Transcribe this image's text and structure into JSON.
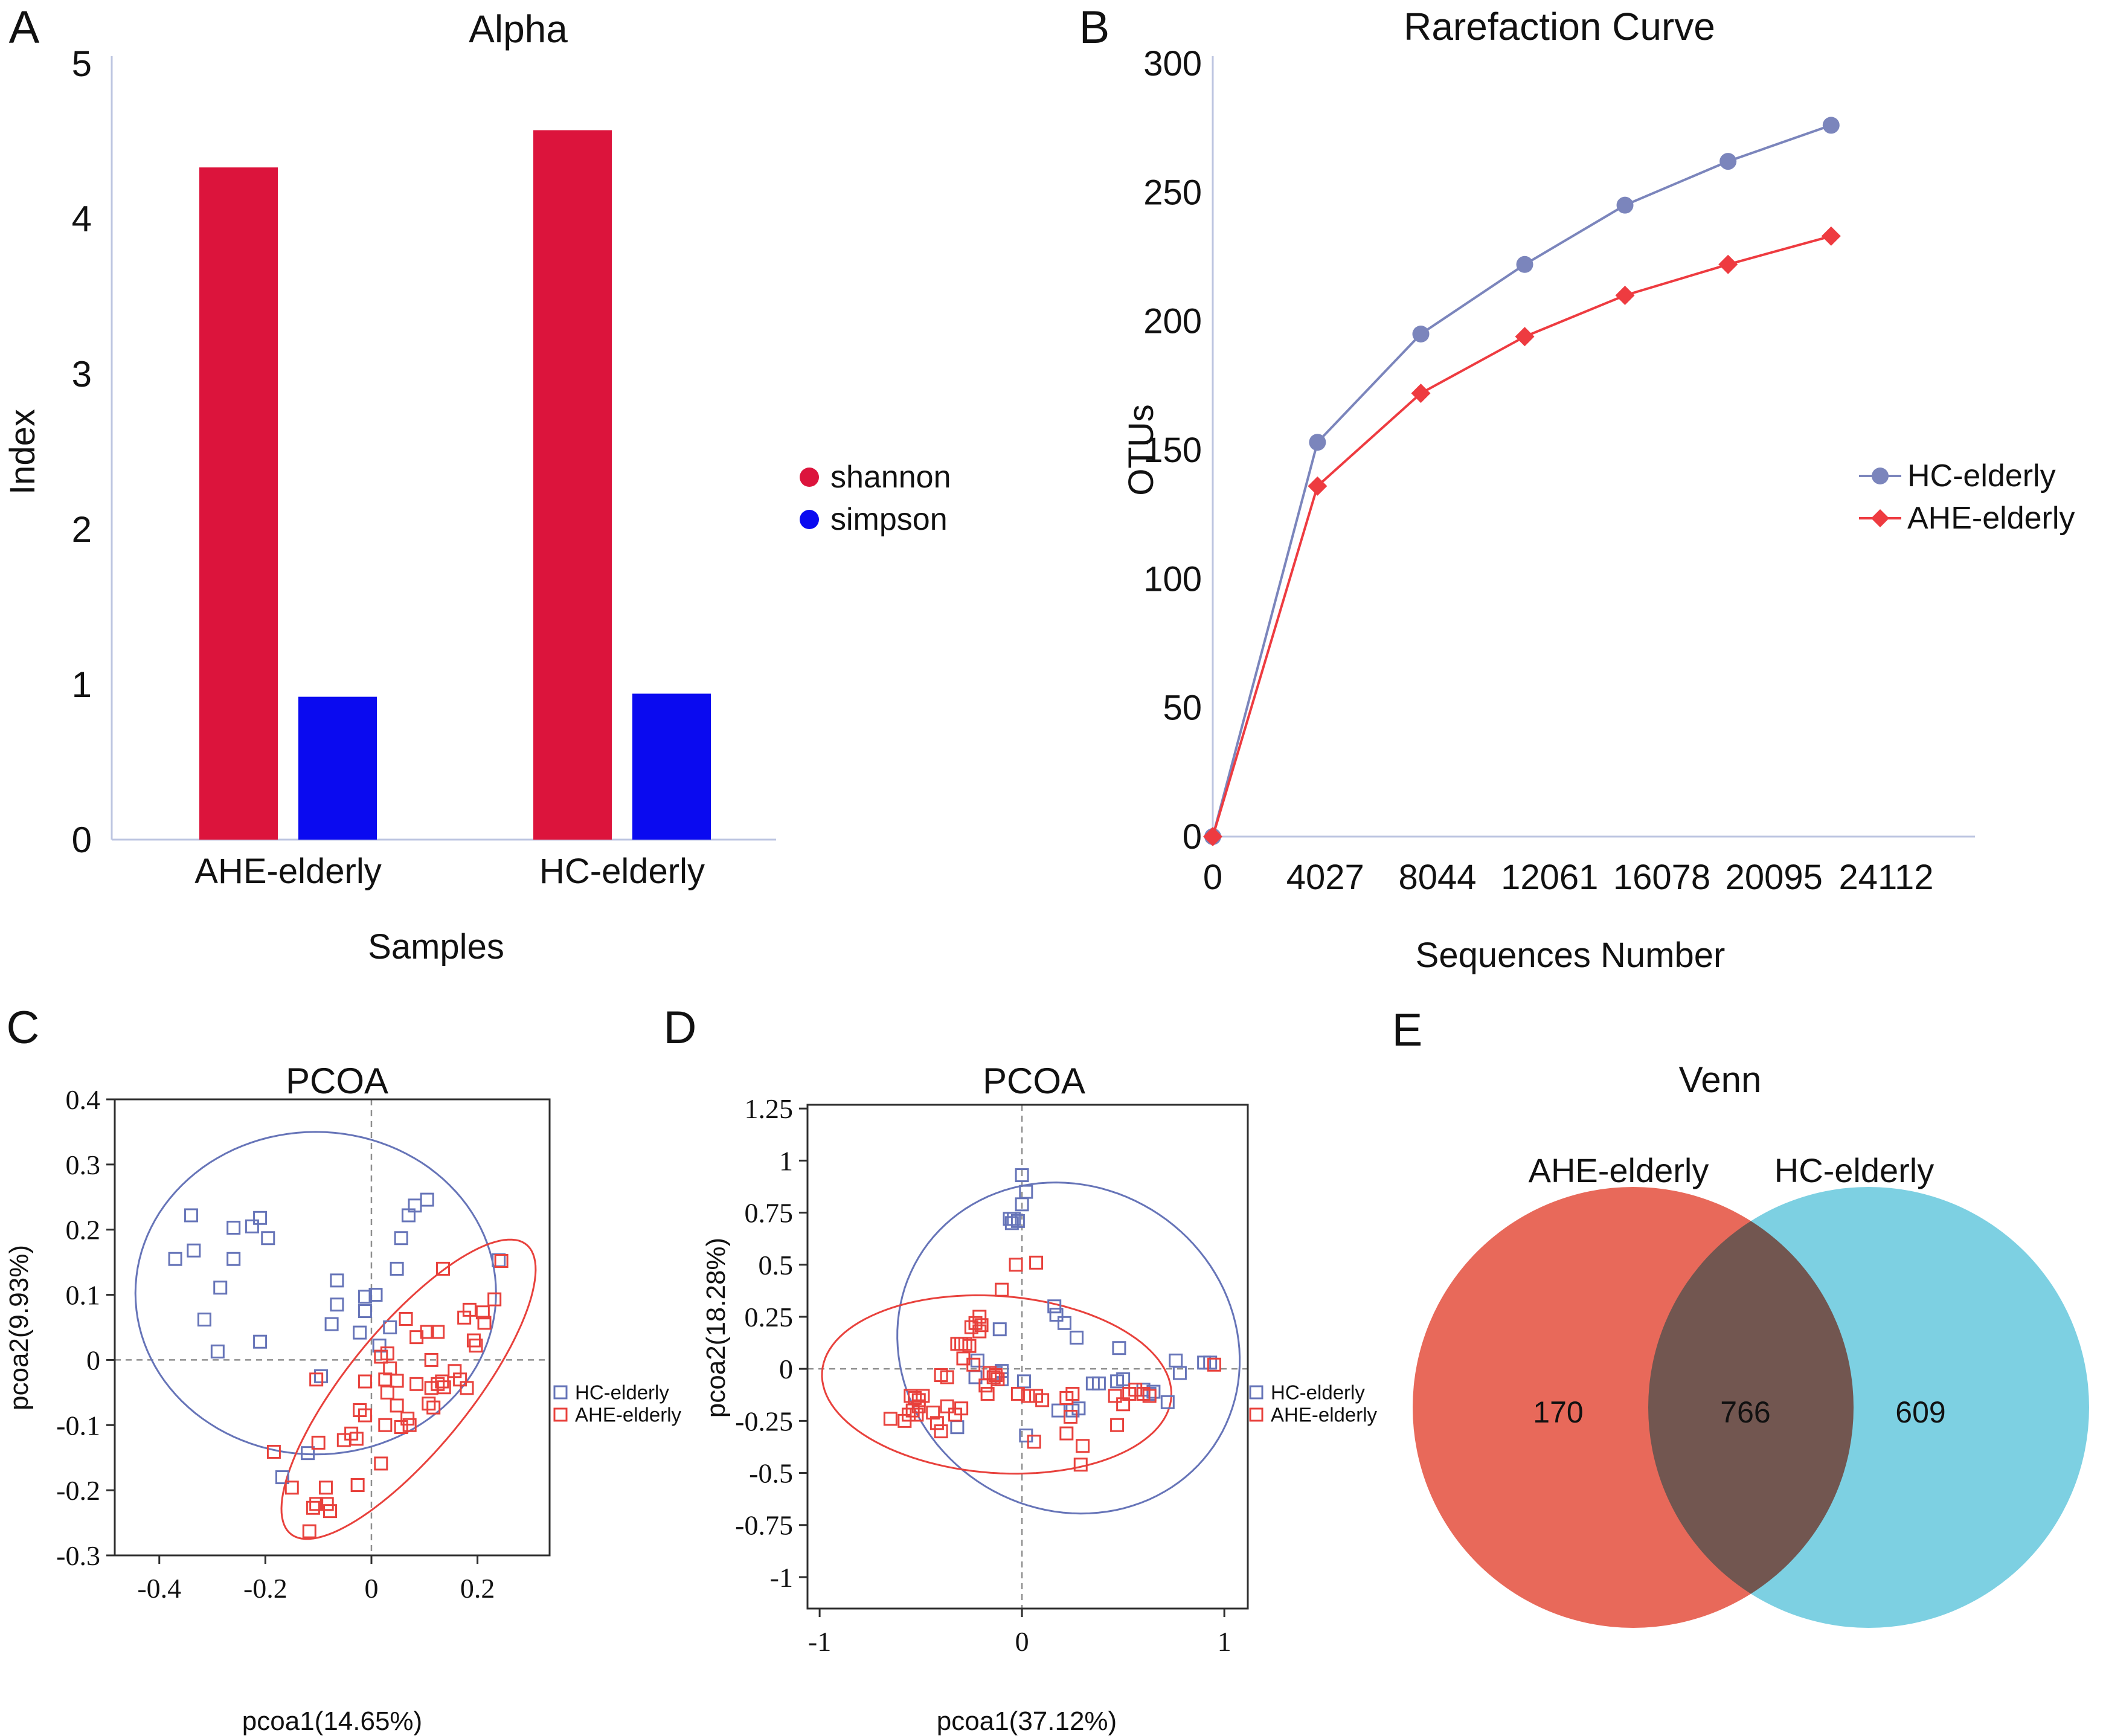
{
  "panels": {
    "A": {
      "label": "A"
    },
    "B": {
      "label": "B"
    },
    "C": {
      "label": "C"
    },
    "D": {
      "label": "D"
    },
    "E": {
      "label": "E"
    }
  },
  "colors": {
    "bar_red": "#DC143C",
    "bar_blue": "#0A0AF0",
    "line_blue": "#7B85BC",
    "line_red": "#EE3B40",
    "square_blue": "#6674B8",
    "square_red": "#E8413C",
    "venn_red": "#E8695A",
    "venn_blue": "#7DD0E2",
    "axis_light": "#bdc5e1",
    "crosshair_gray": "#8f8f8f",
    "box_dark": "#2e2e2e"
  },
  "chart_data": [
    {
      "panel": "A",
      "type": "bar",
      "title": "Alpha",
      "xlabel": "Samples",
      "ylabel": "Index",
      "ylim": [
        0,
        5
      ],
      "yticks": [
        5,
        4,
        3,
        2,
        1,
        0
      ],
      "categories": [
        "AHE-elderly",
        "HC-elderly"
      ],
      "legend_position": "right",
      "grid": false,
      "series": [
        {
          "name": "shannon",
          "color": "#DC143C",
          "values": [
            4.33,
            4.57
          ]
        },
        {
          "name": "simpson",
          "color": "#0A0AF0",
          "values": [
            0.92,
            0.94
          ]
        }
      ]
    },
    {
      "panel": "B",
      "type": "line",
      "title": "Rarefaction Curve",
      "xlabel": "Sequences Number",
      "ylabel": "OTUs",
      "ylim": [
        0,
        300
      ],
      "yticks": [
        300,
        250,
        200,
        150,
        100,
        50,
        0
      ],
      "xticks": [
        0,
        4027,
        8044,
        12061,
        16078,
        20095,
        24112
      ],
      "legend_position": "right",
      "grid": false,
      "series": [
        {
          "name": "HC-elderly",
          "color": "#7B85BC",
          "marker": "circle",
          "x": [
            0,
            3750,
            7450,
            11170,
            14760,
            18450,
            22140
          ],
          "values": [
            0,
            153,
            195,
            222,
            245,
            262,
            276
          ]
        },
        {
          "name": "AHE-elderly",
          "color": "#EE3B40",
          "marker": "diamond",
          "x": [
            0,
            3750,
            7450,
            11170,
            14760,
            18450,
            22140
          ],
          "values": [
            0,
            136,
            172,
            194,
            210,
            222,
            233
          ]
        }
      ]
    },
    {
      "panel": "C",
      "type": "scatter",
      "title": "PCOA",
      "xlabel": "pcoa1(14.65%)",
      "ylabel": "pcoa2(9.93%)",
      "xlim": [
        -0.484,
        0.336
      ],
      "ylim": [
        -0.3,
        0.4
      ],
      "xticks": [
        "-0.4",
        "-0.2",
        "0",
        "0.2"
      ],
      "yticks": [
        "0.4",
        "0.3",
        "0.2",
        "0.1",
        "0",
        "-0.1",
        "-0.2",
        "-0.3"
      ],
      "crosshair": true,
      "series": [
        {
          "name": "HC-elderly",
          "color": "#6674B8",
          "ellipse": {
            "cx": -0.105,
            "cy": 0.1025,
            "a": 0.34,
            "b": 0.2475,
            "rot": 0
          },
          "points": [
            [
              -0.37,
              0.155
            ],
            [
              -0.34,
              0.222
            ],
            [
              -0.335,
              0.168
            ],
            [
              -0.26,
              0.203
            ],
            [
              -0.225,
              0.205
            ],
            [
              -0.21,
              0.218
            ],
            [
              -0.195,
              0.187
            ],
            [
              -0.26,
              0.155
            ],
            [
              -0.285,
              0.111
            ],
            [
              -0.315,
              0.062
            ],
            [
              -0.21,
              0.028
            ],
            [
              -0.29,
              0.013
            ],
            [
              -0.065,
              0.122
            ],
            [
              -0.065,
              0.085
            ],
            [
              -0.075,
              0.055
            ],
            [
              -0.012,
              0.097
            ],
            [
              0.008,
              0.1
            ],
            [
              -0.012,
              0.075
            ],
            [
              -0.022,
              0.042
            ],
            [
              0.035,
              0.05
            ],
            [
              0.048,
              0.14
            ],
            [
              0.056,
              0.187
            ],
            [
              0.07,
              0.222
            ],
            [
              0.082,
              0.237
            ],
            [
              0.105,
              0.246
            ],
            [
              0.015,
              0.022
            ],
            [
              -0.095,
              -0.025
            ],
            [
              -0.12,
              -0.143
            ],
            [
              -0.168,
              -0.18
            ],
            [
              0.24,
              0.153
            ]
          ]
        },
        {
          "name": "AHE-elderly",
          "color": "#E8413C",
          "ellipse": {
            "cx": 0.07,
            "cy": -0.045,
            "a": 0.315,
            "b": 0.105,
            "rot": 43.5
          },
          "points": [
            [
              0.135,
              0.14
            ],
            [
              0.245,
              0.152
            ],
            [
              0.232,
              0.093
            ],
            [
              0.21,
              0.073
            ],
            [
              0.213,
              0.057
            ],
            [
              0.185,
              0.077
            ],
            [
              0.175,
              0.065
            ],
            [
              0.193,
              0.03
            ],
            [
              0.197,
              0.022
            ],
            [
              0.085,
              0.035
            ],
            [
              0.105,
              0.043
            ],
            [
              0.125,
              0.043
            ],
            [
              0.065,
              0.063
            ],
            [
              0.113,
              0.0
            ],
            [
              0.03,
              0.01
            ],
            [
              0.018,
              0.005
            ],
            [
              0.035,
              -0.013
            ],
            [
              0.157,
              -0.017
            ],
            [
              0.167,
              -0.03
            ],
            [
              0.133,
              -0.033
            ],
            [
              0.137,
              -0.042
            ],
            [
              0.125,
              -0.037
            ],
            [
              0.113,
              -0.043
            ],
            [
              0.18,
              -0.043
            ],
            [
              0.085,
              -0.037
            ],
            [
              0.048,
              -0.032
            ],
            [
              0.026,
              -0.03
            ],
            [
              0.03,
              -0.05
            ],
            [
              0.108,
              -0.067
            ],
            [
              0.117,
              -0.073
            ],
            [
              0.048,
              -0.07
            ],
            [
              -0.012,
              -0.033
            ],
            [
              -0.022,
              -0.077
            ],
            [
              -0.012,
              -0.085
            ],
            [
              0.026,
              -0.1
            ],
            [
              0.068,
              -0.09
            ],
            [
              0.072,
              -0.1
            ],
            [
              0.056,
              -0.103
            ],
            [
              -0.038,
              -0.113
            ],
            [
              -0.028,
              -0.121
            ],
            [
              -0.052,
              -0.123
            ],
            [
              -0.1,
              -0.127
            ],
            [
              -0.104,
              -0.03
            ],
            [
              -0.184,
              -0.141
            ],
            [
              -0.15,
              -0.196
            ],
            [
              -0.086,
              -0.196
            ],
            [
              -0.104,
              -0.221
            ],
            [
              -0.11,
              -0.227
            ],
            [
              -0.084,
              -0.221
            ],
            [
              -0.078,
              -0.232
            ],
            [
              -0.026,
              -0.192
            ],
            [
              0.018,
              -0.159
            ],
            [
              -0.117,
              -0.263
            ]
          ]
        }
      ]
    },
    {
      "panel": "D",
      "type": "scatter",
      "title": "PCOA",
      "xlabel": "pcoa1(37.12%)",
      "ylabel": "pcoa2(18.28%)",
      "xlim": [
        -1.06,
        1.116
      ],
      "ylim": [
        -1.151,
        1.268
      ],
      "xticks": [
        "-1",
        "0",
        "1"
      ],
      "yticks": [
        "1.25",
        "1",
        "0.75",
        "0.5",
        "0.25",
        "0",
        "-0.25",
        "-0.5",
        "-0.75",
        "-1"
      ],
      "crosshair": true,
      "series": [
        {
          "name": "HC-elderly",
          "color": "#6674B8",
          "ellipse": {
            "cx": 0.23,
            "cy": 0.1,
            "a": 0.86,
            "b": 0.78,
            "rot": -25
          },
          "points": [
            [
              0.0,
              0.93
            ],
            [
              0.02,
              0.85
            ],
            [
              0.0,
              0.79
            ],
            [
              -0.06,
              0.72
            ],
            [
              -0.04,
              0.72
            ],
            [
              -0.05,
              0.7
            ],
            [
              -0.02,
              0.71
            ],
            [
              0.16,
              0.3
            ],
            [
              0.17,
              0.26
            ],
            [
              0.21,
              0.22
            ],
            [
              0.27,
              0.15
            ],
            [
              -0.11,
              0.19
            ],
            [
              0.48,
              0.1
            ],
            [
              0.76,
              0.04
            ],
            [
              0.78,
              -0.02
            ],
            [
              0.9,
              0.03
            ],
            [
              0.93,
              0.03
            ],
            [
              -0.22,
              0.04
            ],
            [
              -0.23,
              -0.04
            ],
            [
              -0.13,
              -0.02
            ],
            [
              -0.1,
              -0.01
            ],
            [
              -0.1,
              -0.05
            ],
            [
              0.01,
              -0.06
            ],
            [
              0.35,
              -0.07
            ],
            [
              0.38,
              -0.07
            ],
            [
              0.47,
              -0.06
            ],
            [
              0.5,
              -0.05
            ],
            [
              0.6,
              -0.1
            ],
            [
              0.63,
              -0.12
            ],
            [
              0.65,
              -0.11
            ],
            [
              0.72,
              -0.16
            ],
            [
              0.18,
              -0.2
            ],
            [
              0.25,
              -0.2
            ],
            [
              0.28,
              -0.19
            ],
            [
              -0.32,
              -0.28
            ],
            [
              0.02,
              -0.32
            ]
          ]
        },
        {
          "name": "AHE-elderly",
          "color": "#E8413C",
          "ellipse": {
            "cx": -0.125,
            "cy": -0.075,
            "a": 0.865,
            "b": 0.425,
            "rot": -4
          },
          "points": [
            [
              -0.03,
              0.5
            ],
            [
              0.07,
              0.51
            ],
            [
              -0.1,
              0.38
            ],
            [
              -0.21,
              0.25
            ],
            [
              -0.23,
              0.22
            ],
            [
              -0.2,
              0.21
            ],
            [
              -0.25,
              0.2
            ],
            [
              -0.21,
              0.18
            ],
            [
              -0.32,
              0.12
            ],
            [
              -0.3,
              0.12
            ],
            [
              -0.28,
              0.12
            ],
            [
              -0.26,
              0.11
            ],
            [
              -0.29,
              0.05
            ],
            [
              -0.24,
              0.02
            ],
            [
              -0.4,
              -0.03
            ],
            [
              -0.37,
              -0.04
            ],
            [
              -0.16,
              -0.02
            ],
            [
              -0.13,
              -0.03
            ],
            [
              -0.12,
              -0.05
            ],
            [
              -0.14,
              -0.04
            ],
            [
              -0.18,
              -0.08
            ],
            [
              -0.17,
              -0.12
            ],
            [
              -0.55,
              -0.13
            ],
            [
              -0.53,
              -0.14
            ],
            [
              -0.51,
              -0.15
            ],
            [
              -0.49,
              -0.13
            ],
            [
              -0.51,
              -0.18
            ],
            [
              -0.54,
              -0.2
            ],
            [
              -0.56,
              -0.22
            ],
            [
              -0.52,
              -0.22
            ],
            [
              -0.58,
              -0.25
            ],
            [
              -0.65,
              -0.24
            ],
            [
              -0.44,
              -0.21
            ],
            [
              -0.42,
              -0.26
            ],
            [
              -0.37,
              -0.18
            ],
            [
              -0.3,
              -0.19
            ],
            [
              -0.33,
              -0.22
            ],
            [
              -0.02,
              -0.12
            ],
            [
              0.03,
              -0.13
            ],
            [
              0.07,
              -0.13
            ],
            [
              0.1,
              -0.15
            ],
            [
              0.22,
              -0.14
            ],
            [
              0.25,
              -0.12
            ],
            [
              0.24,
              -0.23
            ],
            [
              0.46,
              -0.13
            ],
            [
              0.5,
              -0.17
            ],
            [
              0.53,
              -0.12
            ],
            [
              0.56,
              -0.1
            ],
            [
              0.6,
              -0.12
            ],
            [
              0.63,
              -0.13
            ],
            [
              0.47,
              -0.27
            ],
            [
              0.06,
              -0.35
            ],
            [
              0.22,
              -0.31
            ],
            [
              0.3,
              -0.37
            ],
            [
              0.29,
              -0.46
            ],
            [
              -0.4,
              -0.3
            ],
            [
              0.95,
              0.02
            ]
          ]
        }
      ]
    },
    {
      "panel": "E",
      "type": "venn",
      "title": "Venn",
      "sets": [
        {
          "label": "AHE-elderly",
          "value": 170,
          "color": "#E8695A"
        },
        {
          "label": "HC-elderly",
          "value": 609,
          "color": "#7DD0E2"
        }
      ],
      "intersection": 766
    }
  ]
}
